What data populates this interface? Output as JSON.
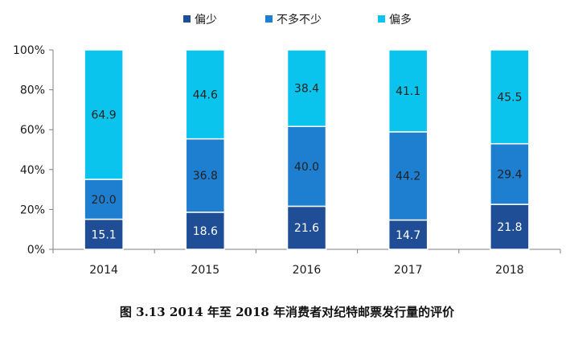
{
  "caption": "图 3.13   2014 年至 2018 年消费者对纪特邮票发行量的评价",
  "chart_data": {
    "type": "bar",
    "stacked": true,
    "normalized": true,
    "categories": [
      "2014",
      "2015",
      "2016",
      "2017",
      "2018"
    ],
    "series": [
      {
        "name": "偏少",
        "color": "#1f4e96",
        "values": [
          15.1,
          18.6,
          21.6,
          14.7,
          21.8
        ]
      },
      {
        "name": "不多不少",
        "color": "#1e7fd0",
        "values": [
          20.0,
          36.8,
          40.0,
          44.2,
          29.4
        ]
      },
      {
        "name": "偏多",
        "color": "#0ac4ee",
        "values": [
          64.9,
          44.6,
          38.4,
          41.1,
          45.5
        ]
      }
    ],
    "ylim": [
      0,
      100
    ],
    "yticks": [
      "0%",
      "20%",
      "40%",
      "60%",
      "80%",
      "100%"
    ],
    "legend_position": "top",
    "grid": false
  }
}
